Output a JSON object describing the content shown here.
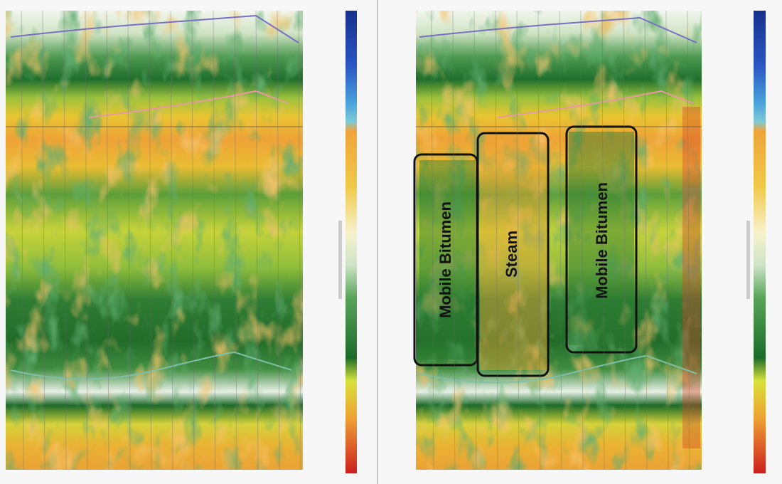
{
  "annotations": [
    "Mobile Bitumen",
    "Steam",
    "Mobile Bitumen"
  ]
}
